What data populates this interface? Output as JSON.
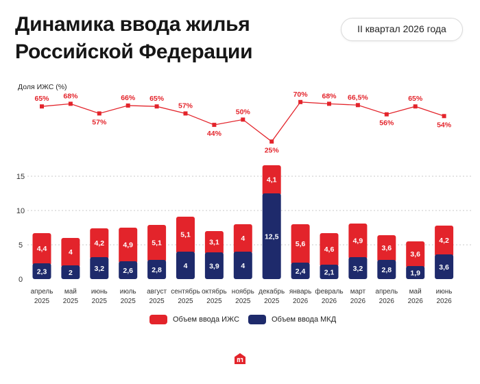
{
  "header": {
    "title_line1": "Динамика ввода жилья",
    "title_line2": "Российской Федерации",
    "period": "II квартал 2026 года"
  },
  "colors": {
    "ijs": "#e3242b",
    "mkd": "#1e2a6b",
    "line": "#e3242b",
    "grid": "#c8c8c8"
  },
  "logo_icon": "house-logo-icon",
  "chart_data": [
    {
      "type": "line",
      "ylabel": "Доля ИЖС (%)",
      "categories": [
        "апрель 2025",
        "май 2025",
        "июнь 2025",
        "июль 2025",
        "август 2025",
        "сентябрь 2025",
        "октябрь 2025",
        "ноябрь 2025",
        "декабрь 2025",
        "январь 2026",
        "февраль 2026",
        "март 2026",
        "апрель 2026",
        "май 2026",
        "июнь 2026"
      ],
      "values": [
        65,
        68,
        57,
        66,
        65,
        57,
        44,
        50,
        25,
        70,
        68,
        66.5,
        56,
        65,
        54
      ],
      "labels": [
        "65%",
        "68%",
        "57%",
        "66%",
        "65%",
        "57%",
        "44%",
        "50%",
        "25%",
        "70%",
        "68%",
        "66,5%",
        "56%",
        "65%",
        "54%"
      ]
    },
    {
      "type": "bar",
      "stacked": true,
      "categories": [
        [
          "апрель",
          "2025"
        ],
        [
          "май",
          "2025"
        ],
        [
          "июнь",
          "2025"
        ],
        [
          "июль",
          "2025"
        ],
        [
          "август",
          "2025"
        ],
        [
          "сентябрь",
          "2025"
        ],
        [
          "октябрь",
          "2025"
        ],
        [
          "ноябрь",
          "2025"
        ],
        [
          "декабрь",
          "2025"
        ],
        [
          "январь",
          "2026"
        ],
        [
          "февраль",
          "2026"
        ],
        [
          "март",
          "2026"
        ],
        [
          "апрель",
          "2026"
        ],
        [
          "май",
          "2026"
        ],
        [
          "июнь",
          "2026"
        ]
      ],
      "ylim": [
        0,
        15
      ],
      "yticks": [
        "0",
        "5",
        "10",
        "15"
      ],
      "grid": true,
      "legend_position": "bottom",
      "series": [
        {
          "name": "Объем ввода МКД",
          "values": [
            2.3,
            2,
            3.2,
            2.6,
            2.8,
            4,
            3.9,
            4,
            12.5,
            2.4,
            2.1,
            3.2,
            2.8,
            1.9,
            3.6
          ],
          "labels": [
            "2,3",
            "2",
            "3,2",
            "2,6",
            "2,8",
            "4",
            "3,9",
            "4",
            "12,5",
            "2,4",
            "2,1",
            "3,2",
            "2,8",
            "1,9",
            "3,6"
          ]
        },
        {
          "name": "Объем ввода ИЖС",
          "values": [
            4.4,
            4,
            4.2,
            4.9,
            5.1,
            5.1,
            3.1,
            4,
            4.1,
            5.6,
            4.6,
            4.9,
            3.6,
            3.6,
            4.2
          ],
          "labels": [
            "4,4",
            "4",
            "4,2",
            "4,9",
            "5,1",
            "5,1",
            "3,1",
            "4",
            "4,1",
            "5,6",
            "4,6",
            "4,9",
            "3,6",
            "3,6",
            "4,2"
          ]
        }
      ]
    }
  ]
}
